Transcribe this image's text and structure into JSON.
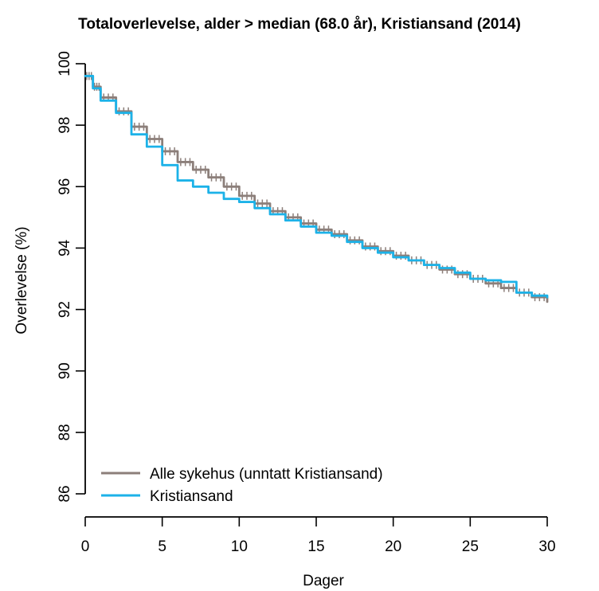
{
  "chart_data": {
    "type": "line",
    "title": "Totaloverlevelse, alder > median (68.0 år), Kristiansand (2014)",
    "xlabel": "Dager",
    "ylabel": "Overlevelse (%)",
    "xlim": [
      0,
      30
    ],
    "ylim": [
      86,
      100
    ],
    "xticks": [
      "0",
      "5",
      "10",
      "15",
      "20",
      "25",
      "30"
    ],
    "yticks": [
      "86",
      "88",
      "90",
      "92",
      "94",
      "96",
      "98",
      "100"
    ],
    "grid": false,
    "legend": {
      "position": "bottom-left",
      "entries": [
        {
          "label": "Alle sykehus (unntatt Kristiansand)",
          "color": "#8c7f7a"
        },
        {
          "label": "Kristiansand",
          "color": "#1cb2e8"
        }
      ]
    },
    "series": [
      {
        "name": "Alle sykehus (unntatt Kristiansand)",
        "color": "#8c7f7a",
        "censor_marks": true,
        "x": [
          0,
          0.5,
          1,
          2,
          3,
          4,
          5,
          6,
          7,
          8,
          9,
          10,
          11,
          12,
          13,
          14,
          15,
          16,
          17,
          18,
          19,
          20,
          21,
          22,
          23,
          24,
          25,
          26,
          27,
          28,
          29,
          30
        ],
        "y": [
          99.6,
          99.25,
          98.9,
          98.45,
          97.95,
          97.55,
          97.15,
          96.8,
          96.55,
          96.3,
          96.0,
          95.7,
          95.45,
          95.2,
          95.0,
          94.8,
          94.6,
          94.45,
          94.25,
          94.05,
          93.9,
          93.75,
          93.6,
          93.45,
          93.3,
          93.15,
          93.0,
          92.85,
          92.7,
          92.55,
          92.4,
          92.25
        ]
      },
      {
        "name": "Kristiansand",
        "color": "#1cb2e8",
        "x": [
          0,
          0.5,
          1,
          2,
          3,
          4,
          5,
          6,
          7,
          8,
          9,
          10,
          11,
          12,
          13,
          14,
          15,
          16,
          17,
          18,
          19,
          20,
          21,
          22,
          23,
          24,
          25,
          26,
          27,
          28,
          29,
          30
        ],
        "y": [
          99.6,
          99.2,
          98.8,
          98.4,
          97.7,
          97.3,
          96.7,
          96.2,
          96.0,
          95.8,
          95.6,
          95.5,
          95.3,
          95.1,
          94.9,
          94.7,
          94.5,
          94.4,
          94.2,
          94.0,
          93.85,
          93.7,
          93.6,
          93.45,
          93.35,
          93.2,
          93.0,
          92.95,
          92.9,
          92.55,
          92.45,
          92.4
        ]
      }
    ]
  }
}
